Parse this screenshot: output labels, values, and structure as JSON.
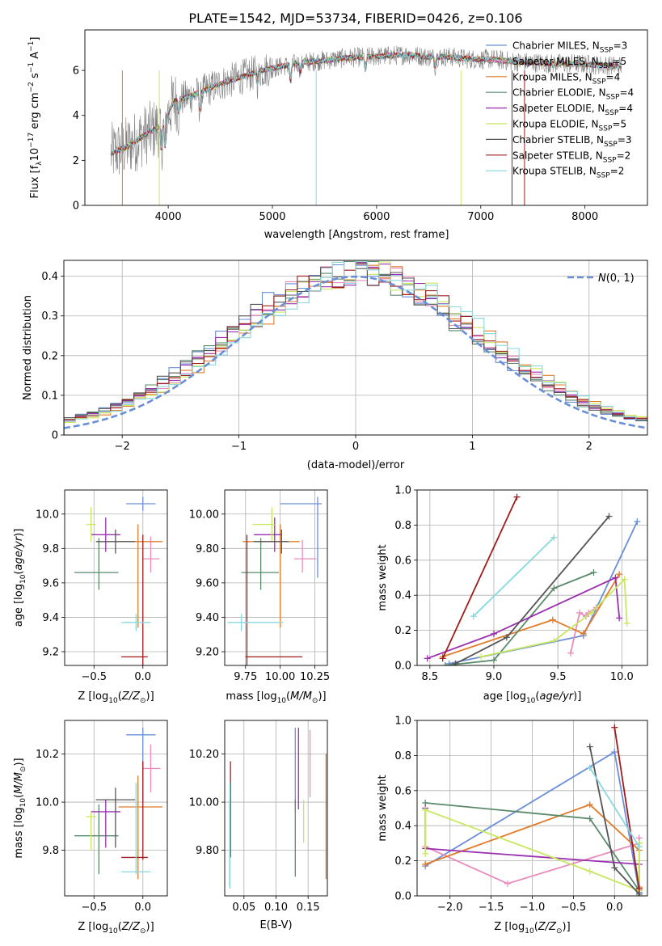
{
  "figure_title": "PLATE=1542, MJD=53734, FIBERID=0426, z=0.106",
  "colors": {
    "chabrier_miles": "#6a8fd8",
    "salpeter_miles": "#e98bbb",
    "kroupa_miles": "#e07b2a",
    "chabrier_elodie": "#5a8a6a",
    "salpeter_elodie": "#9a30b0",
    "kroupa_elodie": "#c8e860",
    "chabrier_stelib": "#555555",
    "salpeter_stelib": "#a01c1c",
    "kroupa_stelib": "#88d8e0",
    "grid": "#b0b0b0",
    "observed": "#808080"
  },
  "chart_data": [
    {
      "id": "spectrum",
      "type": "line",
      "xlabel": "wavelength [Angstrom, rest frame]",
      "ylabel": "Flux [f_λ10^-17 erg cm^-2 s^-1 A^-1]",
      "xlim": [
        3200,
        8600
      ],
      "ylim": [
        0,
        7.8
      ],
      "xticks": [
        4000,
        5000,
        6000,
        7000,
        8000
      ],
      "yticks": [
        0,
        2,
        4,
        6
      ],
      "grid": false,
      "legend_position": "top-right",
      "continuum_x": [
        3450,
        3600,
        3800,
        3950,
        4050,
        4300,
        4500,
        4700,
        4900,
        5100,
        5300,
        5500,
        5700,
        5900,
        6100,
        6300,
        6500,
        6700,
        6900,
        7100,
        7300,
        7500,
        7700,
        7900,
        8100,
        8300
      ],
      "continuum_y": [
        2.3,
        2.6,
        3.2,
        3.6,
        4.6,
        5.0,
        5.4,
        5.7,
        6.0,
        6.2,
        6.35,
        6.45,
        6.55,
        6.6,
        6.65,
        6.7,
        6.6,
        6.6,
        6.5,
        6.5,
        6.4,
        6.35,
        6.3,
        6.3,
        6.25,
        6.2
      ],
      "series": [
        {
          "name": "Chabrier MILES, N_SSP=3",
          "key": "chabrier_miles"
        },
        {
          "name": "Salpeter MILES, N_SSP=5",
          "key": "salpeter_miles"
        },
        {
          "name": "Kroupa MILES, N_SSP=4",
          "key": "kroupa_miles"
        },
        {
          "name": "Chabrier ELODIE, N_SSP=4",
          "key": "chabrier_elodie"
        },
        {
          "name": "Salpeter ELODIE, N_SSP=4",
          "key": "salpeter_elodie"
        },
        {
          "name": "Kroupa ELODIE, N_SSP=5",
          "key": "kroupa_elodie"
        },
        {
          "name": "Chabrier STELIB, N_SSP=3",
          "key": "chabrier_stelib"
        },
        {
          "name": "Salpeter STELIB, N_SSP=2",
          "key": "salpeter_stelib"
        },
        {
          "name": "Kroupa STELIB, N_SSP=2",
          "key": "kroupa_stelib"
        }
      ]
    },
    {
      "id": "residuals",
      "type": "histogram",
      "xlabel": "(data-model)/error",
      "ylabel": "Normed distribution",
      "xlim": [
        -2.5,
        2.5
      ],
      "ylim": [
        0,
        0.44
      ],
      "xticks": [
        -2,
        -1,
        0,
        1,
        2
      ],
      "yticks": [
        0.0,
        0.1,
        0.2,
        0.3,
        0.4
      ],
      "grid": true,
      "legend": "N(0,1)",
      "legend_position": "top-right"
    },
    {
      "id": "age_vs_Z",
      "type": "errorbar",
      "xlabel": "Z [log10(Z/Z_sun)]",
      "ylabel": "age [log10(age/yr)]",
      "xlim": [
        -0.8,
        0.25
      ],
      "ylim": [
        9.12,
        10.14
      ],
      "xticks": [
        -0.5,
        0.0
      ],
      "yticks": [
        9.2,
        9.4,
        9.6,
        9.8,
        10.0
      ],
      "grid": true,
      "points": [
        {
          "key": "chabrier_miles",
          "x": 0.0,
          "xerr": [
            0.17,
            0.13
          ],
          "y": 10.06,
          "yerr": [
            0.04,
            0.04
          ]
        },
        {
          "key": "salpeter_miles",
          "x": 0.08,
          "xerr": [
            0.08,
            0.09
          ],
          "y": 9.74,
          "yerr": [
            0.08,
            0.13
          ]
        },
        {
          "key": "kroupa_miles",
          "x": -0.05,
          "xerr": [
            0.2,
            0.25
          ],
          "y": 9.84,
          "yerr": [
            0.5,
            0.1
          ]
        },
        {
          "key": "chabrier_elodie",
          "x": -0.45,
          "xerr": [
            0.25,
            0.2
          ],
          "y": 9.66,
          "yerr": [
            0.1,
            0.2
          ]
        },
        {
          "key": "salpeter_elodie",
          "x": -0.38,
          "xerr": [
            0.15,
            0.15
          ],
          "y": 9.88,
          "yerr": [
            0.1,
            0.1
          ]
        },
        {
          "key": "kroupa_elodie",
          "x": -0.53,
          "xerr": [
            0.05,
            0.05
          ],
          "y": 9.94,
          "yerr": [
            0.1,
            0.1
          ]
        },
        {
          "key": "chabrier_stelib",
          "x": -0.28,
          "xerr": [
            0.2,
            0.2
          ],
          "y": 9.84,
          "yerr": [
            0.07,
            0.07
          ]
        },
        {
          "key": "salpeter_stelib",
          "x": 0.0,
          "xerr": [
            0.22,
            0.05
          ],
          "y": 9.17,
          "yerr": [
            0.05,
            0.71
          ]
        },
        {
          "key": "kroupa_stelib",
          "x": -0.07,
          "xerr": [
            0.15,
            0.15
          ],
          "y": 9.37,
          "yerr": [
            0.05,
            0.05
          ]
        }
      ]
    },
    {
      "id": "age_vs_mass",
      "type": "errorbar",
      "xlabel": "mass [log10(M/M_sun)]",
      "ylabel": "",
      "xlim": [
        9.6,
        10.34
      ],
      "ylim": [
        9.12,
        10.14
      ],
      "xticks": [
        9.75,
        10.0,
        10.25
      ],
      "yticks": [
        9.2,
        9.4,
        9.6,
        9.8,
        10.0
      ],
      "grid": true,
      "points": [
        {
          "key": "chabrier_miles",
          "x": 10.27,
          "xerr": [
            0.27,
            0.03
          ],
          "y": 10.06,
          "yerr": [
            0.43,
            0.04
          ]
        },
        {
          "key": "salpeter_miles",
          "x": 10.16,
          "xerr": [
            0.06,
            0.1
          ],
          "y": 9.74,
          "yerr": [
            0.08,
            0.11
          ]
        },
        {
          "key": "kroupa_miles",
          "x": 10.0,
          "xerr": [
            0.27,
            0.14
          ],
          "y": 9.84,
          "yerr": [
            0.5,
            0.1
          ]
        },
        {
          "key": "chabrier_elodie",
          "x": 9.86,
          "xerr": [
            0.14,
            0.13
          ],
          "y": 9.66,
          "yerr": [
            0.1,
            0.2
          ]
        },
        {
          "key": "salpeter_elodie",
          "x": 9.96,
          "xerr": [
            0.15,
            0.05
          ],
          "y": 9.88,
          "yerr": [
            0.1,
            0.1
          ]
        },
        {
          "key": "kroupa_elodie",
          "x": 9.94,
          "xerr": [
            0.14,
            0.02
          ],
          "y": 9.94,
          "yerr": [
            0.1,
            0.1
          ]
        },
        {
          "key": "chabrier_stelib",
          "x": 10.01,
          "xerr": [
            0.2,
            0.05
          ],
          "y": 9.84,
          "yerr": [
            0.07,
            0.07
          ]
        },
        {
          "key": "salpeter_stelib",
          "x": 9.76,
          "xerr": [
            0.01,
            0.4
          ],
          "y": 9.17,
          "yerr": [
            0.05,
            0.71
          ]
        },
        {
          "key": "kroupa_stelib",
          "x": 9.72,
          "xerr": [
            0.1,
            0.3
          ],
          "y": 9.37,
          "yerr": [
            0.05,
            0.05
          ]
        }
      ]
    },
    {
      "id": "weight_vs_age",
      "type": "line",
      "xlabel": "age [log10(age/yr)]",
      "ylabel": "mass weight",
      "xlim": [
        8.4,
        10.2
      ],
      "ylim": [
        0,
        1
      ],
      "xticks": [
        8.5,
        9.0,
        9.5,
        10.0
      ],
      "yticks": [
        0.0,
        0.2,
        0.4,
        0.6,
        0.8,
        1.0
      ],
      "grid": true,
      "series": [
        {
          "key": "chabrier_miles",
          "x": [
            8.65,
            9.7,
            10.12
          ],
          "y": [
            0.01,
            0.17,
            0.82
          ]
        },
        {
          "key": "salpeter_miles",
          "x": [
            9.6,
            9.67,
            9.72,
            9.74,
            9.8
          ],
          "y": [
            0.07,
            0.3,
            0.28,
            0.3,
            0.33
          ]
        },
        {
          "key": "kroupa_miles",
          "x": [
            8.6,
            9.46,
            9.7,
            9.98
          ],
          "y": [
            0.05,
            0.26,
            0.18,
            0.52
          ]
        },
        {
          "key": "chabrier_elodie",
          "x": [
            8.62,
            9.0,
            9.47,
            9.78
          ],
          "y": [
            0.0,
            0.03,
            0.44,
            0.53
          ]
        },
        {
          "key": "salpeter_elodie",
          "x": [
            8.48,
            9.0,
            9.95,
            9.98
          ],
          "y": [
            0.04,
            0.18,
            0.5,
            0.27
          ]
        },
        {
          "key": "kroupa_elodie",
          "x": [
            8.9,
            9.47,
            9.76,
            10.02,
            10.04
          ],
          "y": [
            0.05,
            0.14,
            0.3,
            0.49,
            0.24
          ]
        },
        {
          "key": "chabrier_stelib",
          "x": [
            8.7,
            9.1,
            9.9
          ],
          "y": [
            0.01,
            0.16,
            0.85
          ]
        },
        {
          "key": "salpeter_stelib",
          "x": [
            8.6,
            9.18
          ],
          "y": [
            0.04,
            0.96
          ]
        },
        {
          "key": "kroupa_stelib",
          "x": [
            8.84,
            9.47
          ],
          "y": [
            0.28,
            0.73
          ]
        }
      ]
    },
    {
      "id": "mass_vs_Z",
      "type": "errorbar",
      "xlabel": "Z [log10(Z/Z_sun)]",
      "ylabel": "mass [log10(M/M_sun)]",
      "xlim": [
        -0.8,
        0.25
      ],
      "ylim": [
        9.61,
        10.34
      ],
      "xticks": [
        -0.5,
        0.0
      ],
      "yticks": [
        9.8,
        10.0,
        10.2
      ],
      "grid": true,
      "points": [
        {
          "key": "chabrier_miles",
          "x": 0.0,
          "xerr": [
            0.17,
            0.13
          ],
          "y": 10.28,
          "yerr": [
            0.28,
            0.03
          ]
        },
        {
          "key": "salpeter_miles",
          "x": 0.08,
          "xerr": [
            0.08,
            0.1
          ],
          "y": 10.14,
          "yerr": [
            0.1,
            0.1
          ]
        },
        {
          "key": "kroupa_miles",
          "x": -0.05,
          "xerr": [
            0.2,
            0.25
          ],
          "y": 9.98,
          "yerr": [
            0.3,
            0.13
          ]
        },
        {
          "key": "chabrier_elodie",
          "x": -0.45,
          "xerr": [
            0.25,
            0.2
          ],
          "y": 9.86,
          "yerr": [
            0.16,
            0.13
          ]
        },
        {
          "key": "salpeter_elodie",
          "x": -0.38,
          "xerr": [
            0.15,
            0.15
          ],
          "y": 9.96,
          "yerr": [
            0.15,
            0.05
          ]
        },
        {
          "key": "kroupa_elodie",
          "x": -0.53,
          "xerr": [
            0.05,
            0.05
          ],
          "y": 9.94,
          "yerr": [
            0.14,
            0.02
          ]
        },
        {
          "key": "chabrier_stelib",
          "x": -0.28,
          "xerr": [
            0.2,
            0.2
          ],
          "y": 10.01,
          "yerr": [
            0.2,
            0.05
          ]
        },
        {
          "key": "salpeter_stelib",
          "x": 0.0,
          "xerr": [
            0.22,
            0.05
          ],
          "y": 9.77,
          "yerr": [
            0.01,
            0.4
          ]
        },
        {
          "key": "kroupa_stelib",
          "x": -0.07,
          "xerr": [
            0.15,
            0.15
          ],
          "y": 9.71,
          "yerr": [
            0.01,
            0.37
          ]
        }
      ]
    },
    {
      "id": "mass_vs_EBV",
      "type": "errorbar",
      "xlabel": "E(B-V)",
      "ylabel": "",
      "xlim": [
        0.02,
        0.18
      ],
      "ylim": [
        9.61,
        10.34
      ],
      "xticks": [
        0.05,
        0.1,
        0.15
      ],
      "yticks": [
        9.8,
        10.0,
        10.2
      ],
      "grid": true,
      "points": [
        {
          "key": "chabrier_miles",
          "x": 0.13,
          "y": 10.14,
          "yerr": [
            0.18,
            0.17
          ]
        },
        {
          "key": "salpeter_miles",
          "x": 0.153,
          "y": 10.12,
          "yerr": [
            0.1,
            0.18
          ]
        },
        {
          "key": "kroupa_miles",
          "x": 0.178,
          "y": 9.94,
          "yerr": [
            0.26,
            0.26
          ]
        },
        {
          "key": "chabrier_elodie",
          "x": 0.13,
          "y": 9.85,
          "yerr": [
            0.16,
            0.16
          ]
        },
        {
          "key": "salpeter_elodie",
          "x": 0.135,
          "y": 10.14,
          "yerr": [
            0.17,
            0.17
          ]
        },
        {
          "key": "kroupa_elodie",
          "x": 0.143,
          "y": 9.92,
          "yerr": [
            0.09,
            0.09
          ]
        },
        {
          "key": "chabrier_stelib",
          "x": 0.028,
          "y": 9.83,
          "yerr": [
            0.18,
            0.18
          ]
        },
        {
          "key": "salpeter_stelib",
          "x": 0.029,
          "y": 9.97,
          "yerr": [
            0.2,
            0.2
          ]
        },
        {
          "key": "kroupa_stelib",
          "x": 0.028,
          "y": 9.86,
          "yerr": [
            0.22,
            0.22
          ]
        }
      ]
    },
    {
      "id": "weight_vs_Z",
      "type": "line",
      "xlabel": "Z [log10(Z/Z_sun)]",
      "ylabel": "mass weight",
      "xlim": [
        -2.4,
        0.4
      ],
      "ylim": [
        0,
        1
      ],
      "xticks": [
        -2.0,
        -1.5,
        -1.0,
        -0.5,
        0.0
      ],
      "yticks": [
        0.0,
        0.2,
        0.4,
        0.6,
        0.8,
        1.0
      ],
      "grid": true,
      "series": [
        {
          "key": "chabrier_miles",
          "x": [
            -2.3,
            0.0,
            0.3
          ],
          "y": [
            0.17,
            0.82,
            0.02
          ]
        },
        {
          "key": "salpeter_miles",
          "x": [
            -2.3,
            -1.3,
            0.3,
            0.3,
            0.3
          ],
          "y": [
            0.28,
            0.07,
            0.3,
            0.33,
            0.28
          ]
        },
        {
          "key": "kroupa_miles",
          "x": [
            -2.3,
            -0.3,
            0.3,
            0.3
          ],
          "y": [
            0.18,
            0.52,
            0.26,
            0.05
          ]
        },
        {
          "key": "chabrier_elodie",
          "x": [
            -2.3,
            -0.3,
            0.3,
            0.3
          ],
          "y": [
            0.53,
            0.44,
            0.03,
            0.0
          ]
        },
        {
          "key": "salpeter_elodie",
          "x": [
            -2.3,
            -2.3,
            0.3,
            0.3
          ],
          "y": [
            0.5,
            0.27,
            0.18,
            0.04
          ]
        },
        {
          "key": "kroupa_elodie",
          "x": [
            -2.3,
            -2.3,
            -0.3,
            0.3,
            0.3
          ],
          "y": [
            0.24,
            0.49,
            0.14,
            0.03,
            0.3
          ]
        },
        {
          "key": "chabrier_stelib",
          "x": [
            -0.3,
            0.0,
            0.3
          ],
          "y": [
            0.85,
            0.16,
            0.01
          ]
        },
        {
          "key": "salpeter_stelib",
          "x": [
            0.0,
            0.3
          ],
          "y": [
            0.96,
            0.04
          ]
        },
        {
          "key": "kroupa_stelib",
          "x": [
            -0.3,
            0.3
          ],
          "y": [
            0.73,
            0.28
          ]
        }
      ]
    }
  ]
}
